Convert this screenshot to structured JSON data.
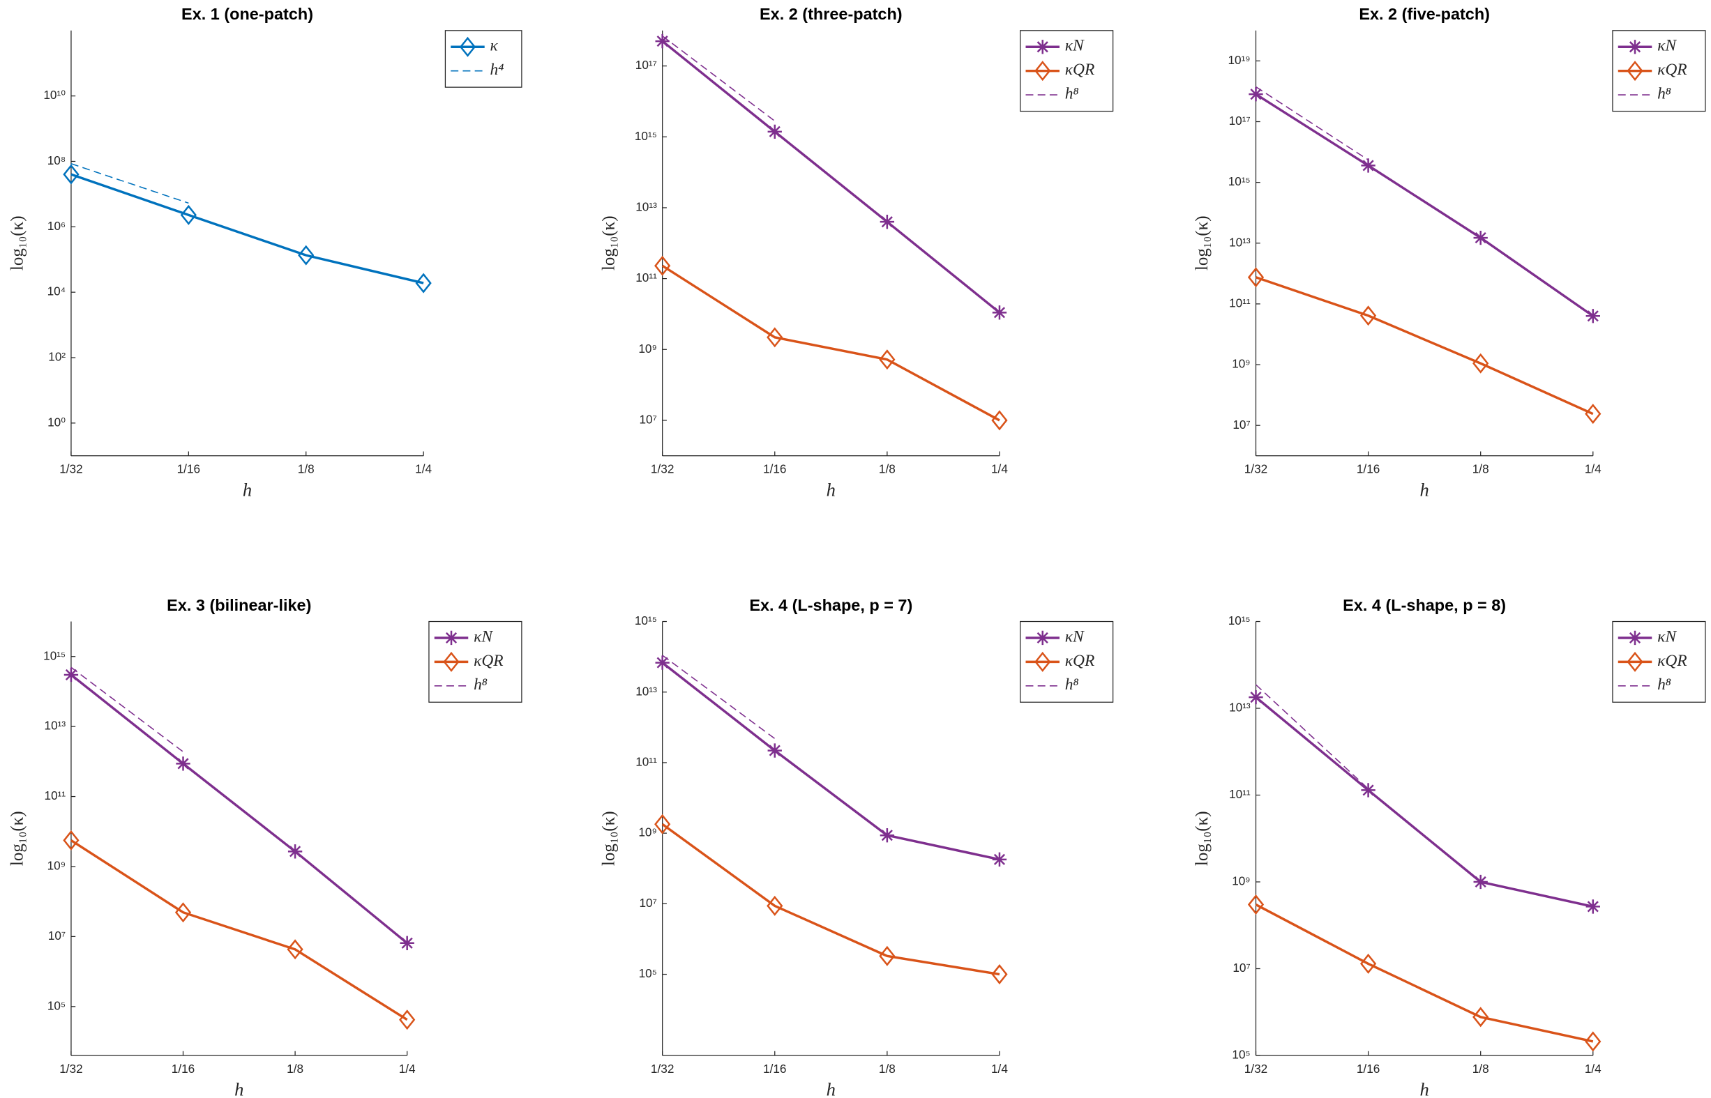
{
  "chart_data": [
    {
      "type": "line",
      "title": "Ex. 1 (one-patch)",
      "xlabel": "h",
      "ylabel": "log₁₀(κ)",
      "log_y": true,
      "categories": [
        "1/32",
        "1/16",
        "1/8",
        "1/4"
      ],
      "ylim": [
        0.1,
        1000000000000.0
      ],
      "yticks": [
        {
          "value": 1,
          "label": "10⁰"
        },
        {
          "value": 100,
          "label": "10²"
        },
        {
          "value": 10000,
          "label": "10⁴"
        },
        {
          "value": 1000000,
          "label": "10⁶"
        },
        {
          "value": 100000000,
          "label": "10⁸"
        },
        {
          "value": 10000000000,
          "label": "10¹⁰"
        }
      ],
      "series": [
        {
          "name": "κ",
          "color": "#0072bd",
          "marker": "diamond",
          "style": "solid",
          "values": [
            40000000,
            2300000,
            135000,
            19000
          ]
        },
        {
          "name": "h⁴",
          "color": "#0072bd",
          "marker": "none",
          "style": "dashed",
          "values": [
            85000000,
            5300000,
            null,
            null
          ]
        }
      ]
    },
    {
      "type": "line",
      "title": "Ex. 2 (three-patch)",
      "xlabel": "h",
      "ylabel": "log₁₀(κ)",
      "log_y": true,
      "categories": [
        "1/32",
        "1/16",
        "1/8",
        "1/4"
      ],
      "ylim": [
        1000000.0,
        1e+18
      ],
      "yticks": [
        {
          "value": 10000000.0,
          "label": "10⁷"
        },
        {
          "value": 1000000000.0,
          "label": "10⁹"
        },
        {
          "value": 100000000000.0,
          "label": "10¹¹"
        },
        {
          "value": 10000000000000.0,
          "label": "10¹³"
        },
        {
          "value": 1000000000000000.0,
          "label": "10¹⁵"
        },
        {
          "value": 1e+17,
          "label": "10¹⁷"
        }
      ],
      "series": [
        {
          "name": "κN",
          "color": "#7e2f8e",
          "marker": "asterisk",
          "style": "solid",
          "values": [
            5e+17,
            1400000000000000.0,
            4000000000000.0,
            11000000000.0
          ]
        },
        {
          "name": "κQR",
          "color": "#d95319",
          "marker": "diamond",
          "style": "solid",
          "values": [
            230000000000.0,
            2200000000.0,
            520000000.0,
            10000000.0
          ]
        },
        {
          "name": "h⁸",
          "color": "#7e2f8e",
          "marker": "none",
          "style": "dashed",
          "values": [
            7e+17,
            2800000000000000.0,
            null,
            null
          ]
        }
      ]
    },
    {
      "type": "line",
      "title": "Ex. 2 (five-patch)",
      "xlabel": "h",
      "ylabel": "log₁₀(κ)",
      "log_y": true,
      "categories": [
        "1/32",
        "1/16",
        "1/8",
        "1/4"
      ],
      "ylim": [
        1000000.0,
        1e+20
      ],
      "yticks": [
        {
          "value": 10000000.0,
          "label": "10⁷"
        },
        {
          "value": 1000000000.0,
          "label": "10⁹"
        },
        {
          "value": 100000000000.0,
          "label": "10¹¹"
        },
        {
          "value": 10000000000000.0,
          "label": "10¹³"
        },
        {
          "value": 1000000000000000.0,
          "label": "10¹⁵"
        },
        {
          "value": 1e+17,
          "label": "10¹⁷"
        },
        {
          "value": 1e+19,
          "label": "10¹⁹"
        }
      ],
      "series": [
        {
          "name": "κN",
          "color": "#7e2f8e",
          "marker": "asterisk",
          "style": "solid",
          "values": [
            8e+17,
            3600000000000000.0,
            15000000000000.0,
            40000000000.0
          ]
        },
        {
          "name": "κQR",
          "color": "#d95319",
          "marker": "diamond",
          "style": "solid",
          "values": [
            750000000000.0,
            41000000000.0,
            1100000000.0,
            24000000.0
          ]
        },
        {
          "name": "h⁸",
          "color": "#7e2f8e",
          "marker": "none",
          "style": "dashed",
          "values": [
            1.4e+18,
            5500000000000000.0,
            null,
            null
          ]
        }
      ]
    },
    {
      "type": "line",
      "title": "Ex. 3 (bilinear-like)",
      "xlabel": "h",
      "ylabel": "log₁₀(κ)",
      "log_y": true,
      "categories": [
        "1/32",
        "1/16",
        "1/8",
        "1/4"
      ],
      "ylim": [
        4000,
        1e+16
      ],
      "yticks": [
        {
          "value": 100000.0,
          "label": "10⁵"
        },
        {
          "value": 10000000.0,
          "label": "10⁷"
        },
        {
          "value": 1000000000.0,
          "label": "10⁹"
        },
        {
          "value": 100000000000.0,
          "label": "10¹¹"
        },
        {
          "value": 10000000000000.0,
          "label": "10¹³"
        },
        {
          "value": 1000000000000000.0,
          "label": "10¹⁵"
        }
      ],
      "series": [
        {
          "name": "κN",
          "color": "#7e2f8e",
          "marker": "asterisk",
          "style": "solid",
          "values": [
            300000000000000.0,
            870000000000.0,
            2700000000.0,
            6500000.0
          ]
        },
        {
          "name": "κQR",
          "color": "#d95319",
          "marker": "diamond",
          "style": "solid",
          "values": [
            5600000000.0,
            49000000.0,
            4300000.0,
            42000
          ]
        },
        {
          "name": "h⁸",
          "color": "#7e2f8e",
          "marker": "none",
          "style": "dashed",
          "values": [
            490000000000000.0,
            1900000000000.0,
            null,
            null
          ]
        }
      ]
    },
    {
      "type": "line",
      "title": "Ex. 4 (L-shape, p = 7)",
      "xlabel": "h",
      "ylabel": "log₁₀(κ)",
      "log_y": true,
      "categories": [
        "1/32",
        "1/16",
        "1/8",
        "1/4"
      ],
      "ylim": [
        500,
        1000000000000000.0
      ],
      "yticks": [
        {
          "value": 100000.0,
          "label": "10⁵"
        },
        {
          "value": 10000000.0,
          "label": "10⁷"
        },
        {
          "value": 1000000000.0,
          "label": "10⁹"
        },
        {
          "value": 100000000000.0,
          "label": "10¹¹"
        },
        {
          "value": 10000000000000.0,
          "label": "10¹³"
        },
        {
          "value": 1000000000000000.0,
          "label": "10¹⁵"
        }
      ],
      "series": [
        {
          "name": "κN",
          "color": "#7e2f8e",
          "marker": "asterisk",
          "style": "solid",
          "values": [
            68000000000000.0,
            220000000000.0,
            870000000.0,
            180000000.0
          ]
        },
        {
          "name": "κQR",
          "color": "#d95319",
          "marker": "diamond",
          "style": "solid",
          "values": [
            1800000000.0,
            8700000.0,
            330000,
            100000
          ]
        },
        {
          "name": "h⁸",
          "color": "#7e2f8e",
          "marker": "none",
          "style": "dashed",
          "values": [
            110000000000000.0,
            480000000000.0,
            null,
            null
          ]
        }
      ]
    },
    {
      "type": "line",
      "title": "Ex. 4 (L-shape, p = 8)",
      "xlabel": "h",
      "ylabel": "log₁₀(κ)",
      "log_y": true,
      "categories": [
        "1/32",
        "1/16",
        "1/8",
        "1/4"
      ],
      "ylim": [
        100000.0,
        1000000000000000.0
      ],
      "yticks": [
        {
          "value": 100000.0,
          "label": "10⁵"
        },
        {
          "value": 10000000.0,
          "label": "10⁷"
        },
        {
          "value": 1000000000.0,
          "label": "10⁹"
        },
        {
          "value": 100000000000.0,
          "label": "10¹¹"
        },
        {
          "value": 10000000000000.0,
          "label": "10¹³"
        },
        {
          "value": 1000000000000000.0,
          "label": "10¹⁵"
        }
      ],
      "series": [
        {
          "name": "κN",
          "color": "#7e2f8e",
          "marker": "asterisk",
          "style": "solid",
          "values": [
            18000000000000.0,
            130000000000.0,
            1000000000.0,
            270000000.0
          ]
        },
        {
          "name": "κQR",
          "color": "#d95319",
          "marker": "diamond",
          "style": "solid",
          "values": [
            300000000.0,
            13000000.0,
            770000,
            210000
          ]
        },
        {
          "name": "h⁸",
          "color": "#7e2f8e",
          "marker": "none",
          "style": "dashed",
          "values": [
            35000000000000.0,
            140000000000.0,
            null,
            null
          ]
        }
      ]
    }
  ]
}
